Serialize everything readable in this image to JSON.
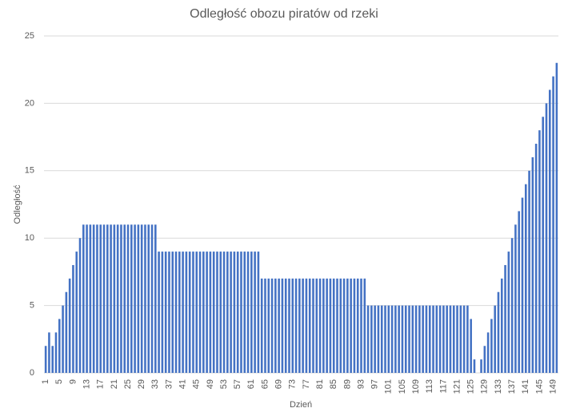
{
  "chart_data": {
    "type": "bar",
    "title": "Odległość obozu piratów od rzeki",
    "x_label": "Dzień",
    "y_label": "Odległość",
    "categories": [
      "1",
      null,
      null,
      null,
      "5",
      null,
      null,
      null,
      "9",
      null,
      null,
      null,
      "13",
      null,
      null,
      null,
      "17",
      null,
      null,
      null,
      "21",
      null,
      null,
      null,
      "25",
      null,
      null,
      null,
      "29",
      null,
      null,
      null,
      "33",
      null,
      null,
      null,
      "37",
      null,
      null,
      null,
      "41",
      null,
      null,
      null,
      "45",
      null,
      null,
      null,
      "49",
      null,
      null,
      null,
      "53",
      null,
      null,
      null,
      "57",
      null,
      null,
      null,
      "61",
      null,
      null,
      null,
      "65",
      null,
      null,
      null,
      "69",
      null,
      null,
      null,
      "73",
      null,
      null,
      null,
      "77",
      null,
      null,
      null,
      "81",
      null,
      null,
      null,
      "85",
      null,
      null,
      null,
      "89",
      null,
      null,
      null,
      "93",
      null,
      null,
      null,
      "97",
      null,
      null,
      null,
      "101",
      null,
      null,
      null,
      "105",
      null,
      null,
      null,
      "109",
      null,
      null,
      null,
      "113",
      null,
      null,
      null,
      "117",
      null,
      null,
      null,
      "121",
      null,
      null,
      null,
      "125",
      null,
      null,
      null,
      "129",
      null,
      null,
      null,
      "133",
      null,
      null,
      null,
      "137",
      null,
      null,
      null,
      "141",
      null,
      null,
      null,
      "145",
      null,
      null,
      null,
      "149",
      null
    ],
    "values": [
      2,
      3,
      2,
      3,
      4,
      5,
      6,
      7,
      8,
      9,
      10,
      11,
      11,
      11,
      11,
      11,
      11,
      11,
      11,
      11,
      11,
      11,
      11,
      11,
      11,
      11,
      11,
      11,
      11,
      11,
      11,
      11,
      11,
      9,
      9,
      9,
      9,
      9,
      9,
      9,
      9,
      9,
      9,
      9,
      9,
      9,
      9,
      9,
      9,
      9,
      9,
      9,
      9,
      9,
      9,
      9,
      9,
      9,
      9,
      9,
      9,
      9,
      9,
      7,
      7,
      7,
      7,
      7,
      7,
      7,
      7,
      7,
      7,
      7,
      7,
      7,
      7,
      7,
      7,
      7,
      7,
      7,
      7,
      7,
      7,
      7,
      7,
      7,
      7,
      7,
      7,
      7,
      7,
      7,
      5,
      5,
      5,
      5,
      5,
      5,
      5,
      5,
      5,
      5,
      5,
      5,
      5,
      5,
      5,
      5,
      5,
      5,
      5,
      5,
      5,
      5,
      5,
      5,
      5,
      5,
      5,
      5,
      5,
      5,
      4,
      1,
      0,
      1,
      2,
      3,
      4,
      5,
      6,
      7,
      8,
      9,
      10,
      11,
      12,
      13,
      14,
      15,
      16,
      17,
      18,
      19,
      20,
      21,
      22,
      23
    ],
    "color": "#4472c4",
    "ylim": [
      0,
      25
    ],
    "yticks": [
      0,
      5,
      10,
      15,
      20,
      25
    ],
    "grid": true
  }
}
